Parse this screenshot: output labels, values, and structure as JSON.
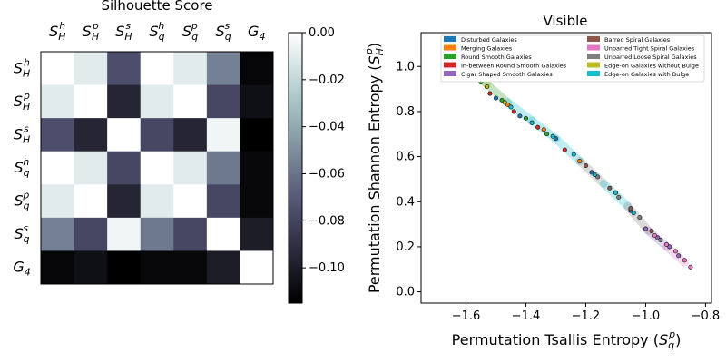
{
  "chart_data": [
    {
      "type": "heatmap",
      "title": "Silhouette Score",
      "row_labels": [
        {
          "base": "S",
          "sub": "H",
          "sup": "h"
        },
        {
          "base": "S",
          "sub": "H",
          "sup": "p"
        },
        {
          "base": "S",
          "sub": "H",
          "sup": "s"
        },
        {
          "base": "S",
          "sub": "q",
          "sup": "h"
        },
        {
          "base": "S",
          "sub": "q",
          "sup": "p"
        },
        {
          "base": "S",
          "sub": "q",
          "sup": "s"
        },
        {
          "base": "G",
          "sub": "4",
          "sup": ""
        }
      ],
      "col_labels": [
        {
          "base": "S",
          "sub": "H",
          "sup": "h"
        },
        {
          "base": "S",
          "sub": "H",
          "sup": "p"
        },
        {
          "base": "S",
          "sub": "H",
          "sup": "s"
        },
        {
          "base": "S",
          "sub": "q",
          "sup": "h"
        },
        {
          "base": "S",
          "sub": "q",
          "sup": "p"
        },
        {
          "base": "S",
          "sub": "q",
          "sup": "s"
        },
        {
          "base": "G",
          "sub": "4",
          "sup": ""
        }
      ],
      "values": [
        [
          0.0,
          -0.01,
          -0.075,
          0.0,
          -0.01,
          -0.055,
          -0.112
        ],
        [
          -0.01,
          0.0,
          -0.096,
          -0.01,
          0.0,
          -0.078,
          -0.107
        ],
        [
          -0.075,
          -0.096,
          0.0,
          -0.078,
          -0.096,
          -0.005,
          -0.115
        ],
        [
          0.0,
          -0.01,
          -0.078,
          0.0,
          -0.01,
          -0.058,
          -0.111
        ],
        [
          -0.01,
          0.0,
          -0.096,
          -0.01,
          0.0,
          -0.078,
          -0.111
        ],
        [
          -0.055,
          -0.078,
          -0.005,
          -0.058,
          -0.078,
          0.0,
          -0.1
        ],
        [
          -0.112,
          -0.107,
          -0.115,
          -0.111,
          -0.111,
          -0.1,
          0.0
        ]
      ],
      "colormap": "bone",
      "vmin": -0.115,
      "vmax": 0.0,
      "colorbar_ticks": [
        "0.00",
        "−0.02",
        "−0.04",
        "−0.06",
        "−0.08",
        "−0.10"
      ],
      "colorbar_tick_values": [
        0.0,
        -0.02,
        -0.04,
        -0.06,
        -0.08,
        -0.1
      ]
    },
    {
      "type": "scatter",
      "title": "Visible",
      "xlabel": "Permutation Tsallis Entropy (",
      "xlabel_symbol": {
        "base": "S",
        "sub": "q",
        "sup": "p"
      },
      "ylabel": "Permutation Shannon Entropy (",
      "ylabel_symbol": {
        "base": "S",
        "sub": "H",
        "sup": "p"
      },
      "xlim": [
        -1.75,
        -0.78
      ],
      "ylim": [
        -0.05,
        1.15
      ],
      "xticks": [
        -1.6,
        -1.4,
        -1.2,
        -1.0,
        -0.8
      ],
      "xtick_labels": [
        "−1.6",
        "−1.4",
        "−1.2",
        "−1.0",
        "−0.8"
      ],
      "yticks": [
        0.0,
        0.2,
        0.4,
        0.6,
        0.8,
        1.0
      ],
      "ytick_labels": [
        "0.0",
        "0.2",
        "0.4",
        "0.6",
        "0.8",
        "1.0"
      ],
      "legend_position": "upper-center",
      "legend_columns": 2,
      "series": [
        {
          "name": "Disturbed Galaxies",
          "color": "#1f77b4",
          "x": [
            -1.5,
            -1.42,
            -1.3,
            -1.18,
            -1.05
          ],
          "y": [
            0.86,
            0.78,
            0.68,
            0.53,
            0.36
          ]
        },
        {
          "name": "Merging Galaxies",
          "color": "#ff7f0e",
          "x": [
            -1.46,
            -1.34,
            -1.22,
            -1.1
          ],
          "y": [
            0.83,
            0.72,
            0.58,
            0.44
          ]
        },
        {
          "name": "Round Smooth Galaxies",
          "color": "#2ca02c",
          "x": [
            -1.58,
            -1.55,
            -1.48,
            -1.4,
            -1.33
          ],
          "y": [
            0.96,
            0.93,
            0.85,
            0.77,
            0.7
          ]
        },
        {
          "name": "In-between Round Smooth Galaxies",
          "color": "#d62728",
          "x": [
            -1.52,
            -1.44,
            -1.36,
            -1.27
          ],
          "y": [
            0.88,
            0.8,
            0.73,
            0.63
          ]
        },
        {
          "name": "Cigar Shaped Smooth Galaxies",
          "color": "#9467bd",
          "x": [
            -1.0,
            -0.96,
            -0.92,
            -0.89
          ],
          "y": [
            0.28,
            0.24,
            0.2,
            0.16
          ]
        },
        {
          "name": "Barred Spiral Galaxies",
          "color": "#8c564b",
          "x": [
            -1.2,
            -1.12,
            -1.05,
            -0.98
          ],
          "y": [
            0.56,
            0.46,
            0.37,
            0.27
          ]
        },
        {
          "name": "Unbarred Tight Spiral Galaxies",
          "color": "#e377c2",
          "x": [
            -0.97,
            -0.93,
            -0.9,
            -0.87,
            -0.85
          ],
          "y": [
            0.25,
            0.21,
            0.18,
            0.14,
            0.11
          ]
        },
        {
          "name": "Unbarred Loose Spiral Galaxies",
          "color": "#7f7f7f",
          "x": [
            -1.16,
            -1.09,
            -1.02,
            -0.95
          ],
          "y": [
            0.51,
            0.42,
            0.33,
            0.23
          ]
        },
        {
          "name": "Edge-on Galaxies without Bulge",
          "color": "#bcbd22",
          "x": [
            -1.6,
            -1.57,
            -1.53,
            -1.47,
            -1.38
          ],
          "y": [
            0.99,
            0.95,
            0.91,
            0.84,
            0.75
          ]
        },
        {
          "name": "Edge-on Galaxies with Bulge",
          "color": "#17becf",
          "x": [
            -1.45,
            -1.38,
            -1.31,
            -1.24,
            -1.17,
            -1.1,
            -1.04
          ],
          "y": [
            0.82,
            0.75,
            0.69,
            0.61,
            0.52,
            0.44,
            0.35
          ]
        }
      ]
    }
  ]
}
